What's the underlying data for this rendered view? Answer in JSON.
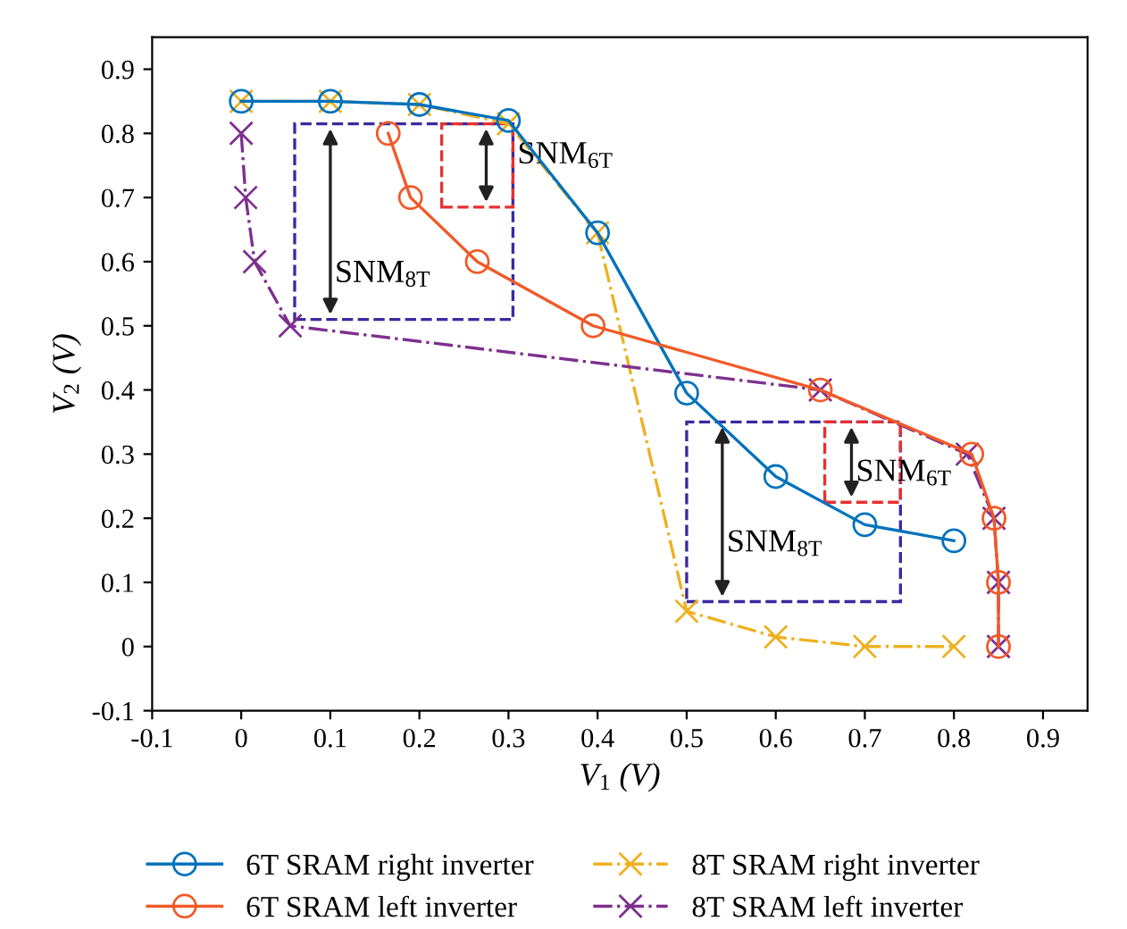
{
  "chart_data": {
    "type": "line",
    "xlabel": "V$_{1}$ (V)",
    "ylabel": "V$_{2}$ (V)",
    "xlim": [
      -0.1,
      0.95
    ],
    "ylim": [
      -0.1,
      0.95
    ],
    "xticks": [
      -0.1,
      0,
      0.1,
      0.2,
      0.3,
      0.4,
      0.5,
      0.6,
      0.7,
      0.8,
      0.9
    ],
    "yticks": [
      -0.1,
      0,
      0.1,
      0.2,
      0.3,
      0.4,
      0.5,
      0.6,
      0.7,
      0.8,
      0.9
    ],
    "grid": false,
    "legend": "bottom",
    "series": [
      {
        "name": "6T SRAM right inverter",
        "color": "#0072bd",
        "marker": "circle",
        "line_style": "solid",
        "x": [
          0,
          0.1,
          0.2,
          0.3,
          0.4,
          0.5,
          0.6,
          0.7,
          0.8
        ],
        "values": [
          0.85,
          0.85,
          0.845,
          0.82,
          0.645,
          0.395,
          0.265,
          0.19,
          0.165
        ]
      },
      {
        "name": "6T SRAM left inverter",
        "color": "#f05a28",
        "marker": "circle",
        "line_style": "solid",
        "x": [
          0.165,
          0.19,
          0.265,
          0.395,
          0.65,
          0.82,
          0.845,
          0.85,
          0.85
        ],
        "values": [
          0.8,
          0.7,
          0.6,
          0.5,
          0.4,
          0.3,
          0.2,
          0.1,
          0.0
        ]
      },
      {
        "name": "8T SRAM right inverter",
        "color": "#edb120",
        "marker": "cross",
        "line_style": "dashdot",
        "x": [
          0,
          0.1,
          0.2,
          0.3,
          0.4,
          0.5,
          0.6,
          0.7,
          0.8
        ],
        "values": [
          0.85,
          0.85,
          0.845,
          0.815,
          0.645,
          0.055,
          0.015,
          0.0,
          0.0
        ]
      },
      {
        "name": "8T SRAM left inverter",
        "color": "#7e2f8e",
        "marker": "cross",
        "line_style": "dashdot",
        "x": [
          0,
          0.005,
          0.015,
          0.055,
          0.65,
          0.815,
          0.845,
          0.85,
          0.85
        ],
        "values": [
          0.8,
          0.7,
          0.6,
          0.5,
          0.4,
          0.3,
          0.2,
          0.1,
          0.0
        ]
      }
    ],
    "annotations": [
      "SNM$_{8T}$",
      "SNM$_{6T}$",
      "SNM$_{8T}$",
      "SNM$_{6T}$"
    ]
  }
}
